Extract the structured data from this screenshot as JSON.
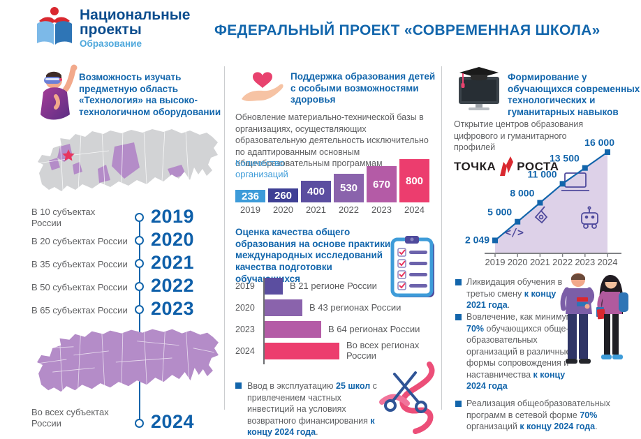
{
  "header": {
    "logo": {
      "line1": "Национальные",
      "line2": "проекты",
      "sub": "Образование"
    },
    "title": "ФЕДЕРАЛЬНЫЙ ПРОЕКТ «СОВРЕМЕННАЯ ШКОЛА»"
  },
  "col1": {
    "title": "Возможность изучать предметную область «Технология» на высоко- технологичном оборудовании",
    "timeline": [
      {
        "label": "В 10 субъектах России",
        "year": "2019"
      },
      {
        "label": "В 20 субъектах России",
        "year": "2020"
      },
      {
        "label": "В 35 субъектах России",
        "year": "2021"
      },
      {
        "label": "В 50 субъектах России",
        "year": "2022"
      },
      {
        "label": "В 65 субъектах России",
        "year": "2023"
      },
      {
        "label": "Во всех субъектах России",
        "year": "2024"
      }
    ]
  },
  "col2": {
    "title": "Поддержка образования детей с особыми возможностями здоровья",
    "paragraph": "Обновление материально-технической базы в организациях, осуществляющих образовательную деятельность исключительно по адаптированным основным общеобразовательным программам",
    "chart_label": "Количество организаций",
    "section2_title": "Оценка качества общего образования на основе практики международных исследований качества подготовки обучающихся",
    "bullet": {
      "pre": "Ввод в эксплуатацию ",
      "b1": "25 школ",
      "mid": " с привлечением частных инвестиций на условиях возвратного финансирования ",
      "b2": "к концу 2024 года",
      "end": "."
    }
  },
  "col3": {
    "title": "Формирование у обучающихся современных технологических и гуманитарных навыков",
    "paragraph": "Открытие центров образования цифрового и гуманитарного профилей",
    "logo": {
      "word1": "ТОЧКА",
      "word2": "РОСТА"
    },
    "bullets": [
      {
        "pre": "Ликвидация обучения в третью смену ",
        "b1": "к концу 2021 года",
        "mid": "",
        "b2": "",
        "end": "."
      },
      {
        "pre": "Вовлечение, как минимум, ",
        "b1": "70%",
        "mid": " обучающихся обще-образовательных организаций в различные формы сопровождения и наставничества ",
        "b2": "к концу 2024 года",
        "end": ""
      },
      {
        "pre": "Реализация общеобразовательных программ в сетевой форме ",
        "b1": "70%",
        "mid": " организаций ",
        "b2": "к концу 2024 года",
        "end": "."
      }
    ]
  },
  "chart_data": [
    {
      "type": "bar",
      "title": "Количество организаций",
      "categories": [
        "2019",
        "2020",
        "2021",
        "2022",
        "2023",
        "2024"
      ],
      "values": [
        236,
        260,
        400,
        530,
        670,
        800
      ],
      "bar_colors": [
        "#3D9BD9",
        "#3F4095",
        "#5B4EA0",
        "#8A63AC",
        "#B45BA6",
        "#EC3D6E"
      ],
      "ylim": [
        0,
        800
      ],
      "value_labels_inside": true
    },
    {
      "type": "bar-horizontal",
      "title": "Оценка качества общего образования на основе практики международных исследований качества подготовки обучающихся",
      "categories": [
        "2019",
        "2020",
        "2023",
        "2024"
      ],
      "values": [
        21,
        43,
        64,
        85
      ],
      "value_labels": [
        "В 21 регионе России",
        "В 43 регионах России",
        "В 64 регионах России",
        "Во всех регионах России"
      ],
      "bar_colors": [
        "#5B4EA0",
        "#8A63AC",
        "#B45BA6",
        "#EC3D6E"
      ],
      "xlim": [
        0,
        85
      ]
    },
    {
      "type": "area",
      "title": "Открытие центров образования цифрового и гуманитарного профилей («Точка роста»)",
      "x": [
        "2019",
        "2020",
        "2021",
        "2022",
        "2023",
        "2024"
      ],
      "values": [
        2049,
        5000,
        8000,
        11000,
        13500,
        16000
      ],
      "point_labels": [
        "2 049",
        "5 000",
        "8 000",
        "11 000",
        "13 500",
        "16 000"
      ],
      "ylim": [
        0,
        16000
      ],
      "line_color": "#1265AB",
      "fill_color": "#D9CCE6",
      "marker": "square",
      "legend": "none",
      "grid": false
    }
  ],
  "colors": {
    "accent_blue": "#1265AB",
    "dark_blue": "#0B4D8E",
    "light_blue": "#3E9CD9",
    "text_gray": "#5E5F61",
    "map_gray": "#D2D3D5",
    "map_purple": "#B48CC8",
    "pink": "#EC3D6E",
    "brand_red": "#D9282F"
  },
  "icons": {
    "logo": "open-book-with-red-reader-icon",
    "col1": "student-vr-headset-icon",
    "col2": "hand-holding-heart-icon",
    "col2b": "clipboard-checklist-icon",
    "col2c": "scissors-ribbon-icon",
    "col3": "monitor-graduation-cap-icon",
    "area_icons": [
      "code-icon",
      "pen-tool-icon",
      "laptop-icon",
      "robot-icon"
    ],
    "map": "russia-map"
  }
}
